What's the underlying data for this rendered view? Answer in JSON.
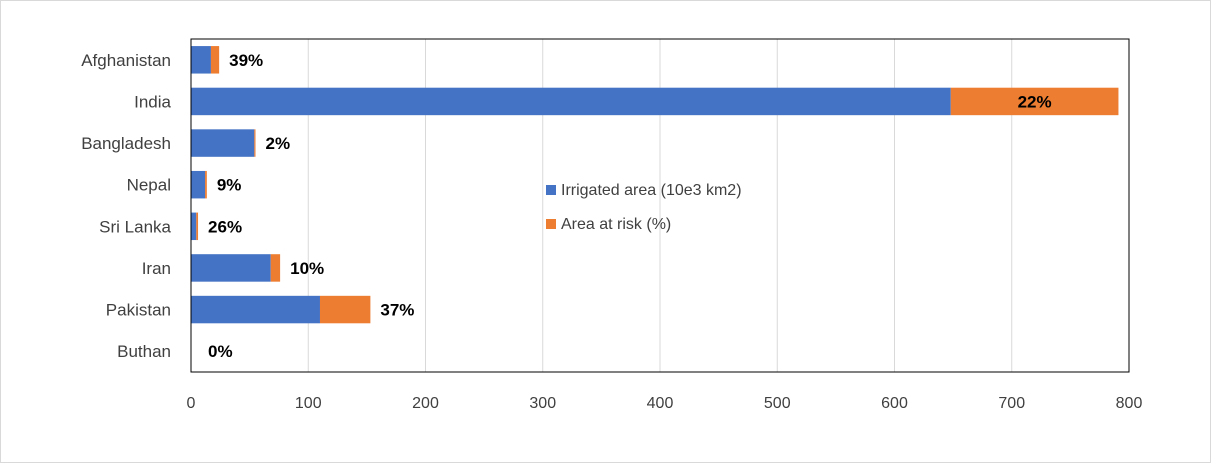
{
  "chart_data": {
    "type": "bar",
    "orientation": "horizontal",
    "stacked": true,
    "title": "",
    "xlabel": "",
    "ylabel": "",
    "categories": [
      "Afghanistan",
      "India",
      "Bangladesh",
      "Nepal",
      "Sri Lanka",
      "Iran",
      "Pakistan",
      "Buthan"
    ],
    "xlim": [
      0,
      800
    ],
    "xticks": [
      0,
      100,
      200,
      300,
      400,
      500,
      600,
      700,
      800
    ],
    "xtick_labels": [
      "0",
      "100",
      "200",
      "300",
      "400",
      "500",
      "600",
      "700",
      "800"
    ],
    "grid": "vertical",
    "legend_position": "center-right",
    "series": [
      {
        "name": "Irrigated area (10e3 km2)",
        "color": "#4472C4",
        "values": [
          17,
          648,
          54,
          12,
          4.5,
          68,
          110,
          0
        ]
      },
      {
        "name": "Area at risk (%)",
        "color": "#ED7D31",
        "values": [
          7,
          143,
          1,
          1.5,
          1.5,
          8,
          43,
          0
        ]
      }
    ],
    "data_labels": [
      "39%",
      "22%",
      "2%",
      "9%",
      "26%",
      "10%",
      "37%",
      "0%"
    ]
  }
}
